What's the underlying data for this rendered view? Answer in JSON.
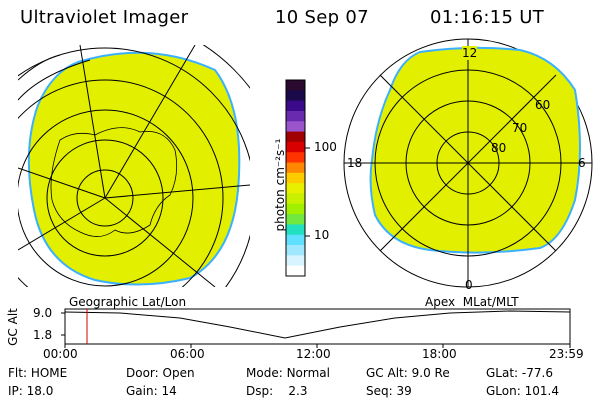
{
  "header": {
    "title": "Ultraviolet Imager",
    "date": "10 Sep 07",
    "time": "01:16:15 UT"
  },
  "colorbar": {
    "unit_label": "photon cm⁻²s⁻¹",
    "ticks": [
      "100",
      "10"
    ],
    "colors": [
      "#2a0a2e",
      "#1a0a4a",
      "#3a0a8a",
      "#6a2ab0",
      "#9a55cc",
      "#a00000",
      "#d80000",
      "#ff3300",
      "#ff8800",
      "#ffcc00",
      "#e8f000",
      "#c8f000",
      "#a0f000",
      "#70e840",
      "#20e0c0",
      "#60e0ff",
      "#a0e8ff",
      "#d8f4ff",
      "#ffffff"
    ]
  },
  "left_panel": {
    "label": "Geographic Lat/Lon",
    "fill_color": "#e2f000"
  },
  "right_panel": {
    "label": "Apex  MLat/MLT",
    "fill_color": "#e2f000",
    "mlt_labels": {
      "top": "12",
      "left": "18",
      "right": "6",
      "bottom": "0"
    },
    "lat_labels": [
      "60",
      "70",
      "80"
    ]
  },
  "altitude_plot": {
    "ylabel": "GC Alt",
    "yticks": [
      "9.0",
      "1.8"
    ],
    "xticks": [
      "00:00",
      "06:00",
      "12:00",
      "18:00",
      "23:59"
    ],
    "current_time_marker": "01:16:15"
  },
  "status": {
    "flt_label": "Flt:",
    "flt_value": "HOME",
    "ip_label": "IP:",
    "ip_value": "18.0",
    "door_label": "Door:",
    "door_value": "Open",
    "gain_label": "Gain:",
    "gain_value": "14",
    "mode_label": "Mode:",
    "mode_value": "Normal",
    "dsp_label": "Dsp:",
    "dsp_value": "2.3",
    "gcalt_label": "GC Alt:",
    "gcalt_value": "9.0 Re",
    "seq_label": "Seq:",
    "seq_value": "39",
    "glat_label": "GLat:",
    "glat_value": "-77.6",
    "glon_label": "GLon:",
    "glon_value": "101.4"
  }
}
